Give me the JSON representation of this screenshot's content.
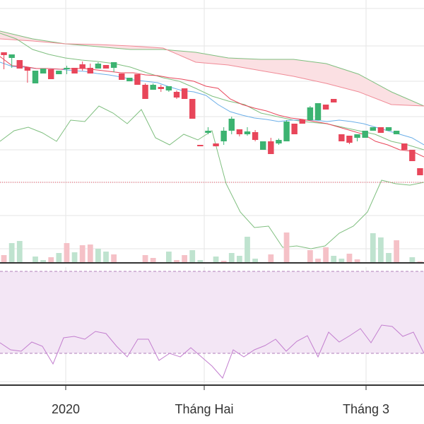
{
  "chart_data": {
    "type": "candlestick",
    "x_tick_labels": [
      "2020",
      "Tháng Hai",
      "Tháng 3"
    ],
    "colors": {
      "up": "#3cb371",
      "down": "#e8465a",
      "volume_up": "#bfe3cf",
      "volume_down": "#f5c1c7",
      "tenkan": "#e8465a",
      "kijun": "#6aaee8",
      "ichimoku_line": "#7fbf7f",
      "cloud_fill": "#fbe0e3",
      "rsi_line": "#c37fcf",
      "rsi_band": "#f3e6f5",
      "grid": "#e6e6e6",
      "reference_line": "#e8465a"
    },
    "candles": [
      [
        74,
        78,
        92,
        98
      ],
      [
        82,
        77,
        94,
        96
      ],
      [
        85,
        97,
        97,
        85
      ],
      [
        95,
        100,
        117,
        98
      ],
      [
        118,
        100,
        100,
        118
      ],
      [
        104,
        97,
        100,
        104
      ],
      [
        98,
        112,
        112,
        98
      ],
      [
        105,
        100,
        100,
        105
      ],
      [
        97,
        96,
        105,
        93
      ],
      [
        96,
        104,
        104,
        96
      ],
      [
        91,
        97,
        87,
        100
      ],
      [
        96,
        104,
        104,
        90
      ],
      [
        97,
        90,
        97,
        88
      ],
      [
        92,
        97,
        97,
        92
      ],
      [
        96,
        88,
        102,
        88
      ],
      [
        104,
        113,
        104,
        113
      ],
      [
        115,
        110,
        110,
        115
      ],
      [
        105,
        120,
        120,
        105
      ],
      [
        120,
        140,
        118,
        140
      ],
      [
        127,
        120,
        118,
        127
      ],
      [
        123,
        126,
        120,
        130
      ],
      [
        128,
        122,
        124,
        130
      ],
      [
        130,
        138,
        128,
        140
      ],
      [
        125,
        140,
        140,
        125
      ],
      [
        140,
        168,
        168,
        140
      ],
      [
        205,
        205,
        205,
        205
      ],
      [
        188,
        185,
        180,
        190
      ],
      [
        203,
        207,
        207,
        203
      ],
      [
        200,
        185,
        180,
        205
      ],
      [
        185,
        168,
        190,
        165
      ],
      [
        183,
        190,
        193,
        183
      ],
      [
        190,
        186,
        180,
        192
      ],
      [
        187,
        198,
        184,
        200
      ],
      [
        212,
        200,
        200,
        212
      ],
      [
        200,
        218,
        195,
        218
      ],
      [
        203,
        198,
        196,
        205
      ],
      [
        200,
        172,
        200,
        170
      ],
      [
        175,
        190,
        175,
        190
      ],
      [
        169,
        175,
        169,
        175
      ],
      [
        170,
        152,
        170,
        150
      ],
      [
        170,
        146,
        170,
        146
      ],
      [
        148,
        155,
        150,
        148
      ],
      [
        140,
        145,
        140,
        145
      ],
      [
        190,
        200,
        200,
        190
      ],
      [
        192,
        202,
        196,
        204
      ],
      [
        195,
        190,
        192,
        200
      ],
      [
        195,
        185,
        185,
        195
      ],
      [
        185,
        180,
        180,
        185
      ],
      [
        180,
        188,
        180,
        188
      ],
      [
        185,
        180,
        180,
        185
      ],
      [
        190,
        185,
        185,
        190
      ],
      [
        203,
        212,
        212,
        203
      ],
      [
        212,
        228,
        228,
        212
      ],
      [
        238,
        248,
        248,
        238
      ]
    ],
    "volume": [
      [
        "down",
        11
      ],
      [
        "up",
        28
      ],
      [
        "up",
        31
      ],
      [
        "down",
        0
      ],
      [
        "up",
        9
      ],
      [
        "up",
        4
      ],
      [
        "down",
        8
      ],
      [
        "up",
        14
      ],
      [
        "down",
        28
      ],
      [
        "up",
        15
      ],
      [
        "down",
        25
      ],
      [
        "down",
        26
      ],
      [
        "up",
        20
      ],
      [
        "up",
        16
      ],
      [
        "down",
        12
      ],
      [
        "down",
        0
      ],
      [
        "down",
        0
      ],
      [
        "up",
        0
      ],
      [
        "down",
        11
      ],
      [
        "down",
        7
      ],
      [
        "up",
        0
      ],
      [
        "up",
        16
      ],
      [
        "down",
        4
      ],
      [
        "down",
        11
      ],
      [
        "up",
        18
      ],
      [
        "up",
        4
      ],
      [
        "up",
        0
      ],
      [
        "up",
        9
      ],
      [
        "down",
        3
      ],
      [
        "up",
        14
      ],
      [
        "up",
        10
      ],
      [
        "up",
        37
      ],
      [
        "up",
        6
      ],
      [
        "up",
        0
      ],
      [
        "down",
        12
      ],
      [
        "up",
        0
      ],
      [
        "down",
        43
      ],
      [
        "down",
        0
      ],
      [
        "up",
        1
      ],
      [
        "down",
        18
      ],
      [
        "down",
        6
      ],
      [
        "down",
        22
      ],
      [
        "up",
        10
      ],
      [
        "up",
        6
      ],
      [
        "down",
        13
      ],
      [
        "down",
        5
      ],
      [
        "up",
        0
      ],
      [
        "up",
        42
      ],
      [
        "up",
        36
      ],
      [
        "up",
        14
      ],
      [
        "down",
        32
      ],
      [
        "down",
        0
      ],
      [
        "up",
        8
      ],
      [
        "down",
        2
      ]
    ],
    "tenkan_line": [
      80,
      93,
      94,
      97,
      97,
      98,
      97,
      97,
      99,
      101,
      103,
      103,
      106,
      107,
      110,
      112,
      115,
      122,
      125,
      140,
      148,
      153,
      157,
      163,
      167,
      169,
      172,
      175,
      180,
      185,
      190,
      200,
      205,
      212,
      214,
      222
    ],
    "kijun_line": [
      88,
      94,
      95,
      97,
      97,
      98,
      100,
      101,
      104,
      106,
      109,
      113,
      115,
      117,
      123,
      128,
      130,
      135,
      148,
      158,
      163,
      167,
      169,
      172,
      170,
      170,
      170,
      172,
      170,
      172,
      175,
      180,
      185,
      190,
      195,
      205
    ],
    "ichimoku_green_line": [
      47,
      55,
      70,
      77,
      82,
      85,
      87,
      90,
      95,
      103,
      110,
      115,
      125,
      136,
      143,
      148,
      160,
      165,
      170,
      173,
      175,
      180,
      185,
      190,
      200,
      205,
      212
    ],
    "cloud_upper": [
      44,
      55,
      62,
      66,
      70,
      70,
      74,
      82,
      84,
      84,
      90,
      105,
      130,
      150
    ],
    "cloud_lower": [
      55,
      58,
      62,
      63,
      65,
      68,
      88,
      92,
      100,
      108,
      118,
      130,
      148,
      150
    ],
    "lagging_span": [
      200,
      185,
      180,
      188,
      200,
      170,
      172,
      150,
      160,
      175,
      155,
      195,
      205,
      190,
      198,
      185,
      260,
      300,
      322,
      320,
      350,
      348,
      352,
      348,
      330,
      320,
      300,
      255,
      260,
      262,
      258
    ],
    "reference_value": 258,
    "rsi": [
      485,
      495,
      497,
      484,
      490,
      515,
      478,
      476,
      480,
      469,
      472,
      490,
      505,
      480,
      480,
      510,
      500,
      505,
      492,
      505,
      518,
      535,
      495,
      505,
      495,
      489,
      480,
      497,
      483,
      475,
      505,
      470,
      484,
      475,
      465,
      485,
      460,
      462,
      476,
      470,
      500
    ],
    "rsi_upper_band": 384,
    "rsi_lower_band": 500
  }
}
